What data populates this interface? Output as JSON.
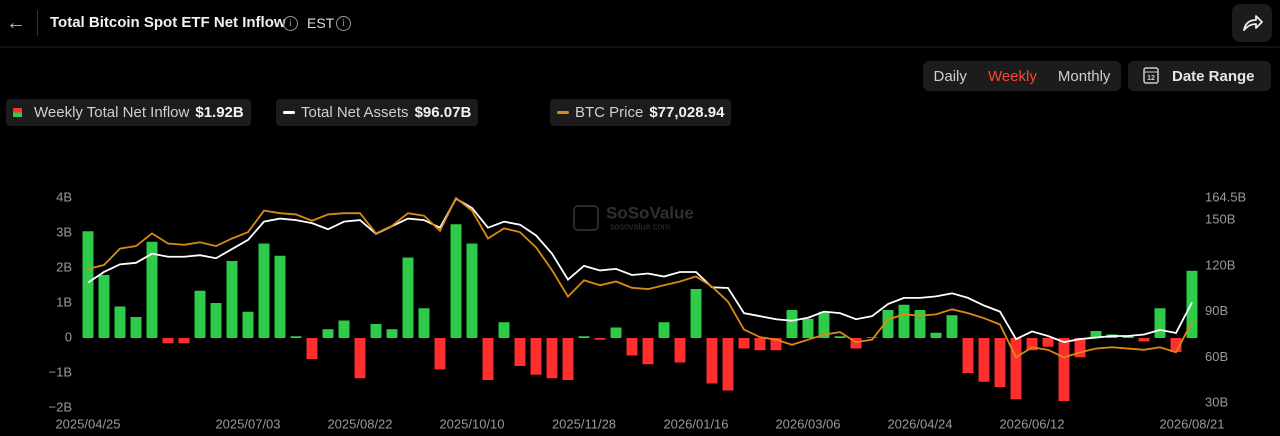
{
  "header": {
    "title": "Total Bitcoin Spot ETF Net Inflow",
    "timezone": "EST"
  },
  "controls": {
    "tabs": [
      "Daily",
      "Weekly",
      "Monthly"
    ],
    "active_tab": 1,
    "date_range": "Date Range"
  },
  "watermark": {
    "brand": "SoSoValue",
    "site": "sosovalue.com"
  },
  "chart_data": {
    "type": "bar",
    "categories": [
      "2025/04/25",
      null,
      null,
      null,
      null,
      null,
      null,
      null,
      null,
      null,
      "2025/07/03",
      null,
      null,
      null,
      null,
      null,
      null,
      "2025/08/22",
      null,
      null,
      null,
      null,
      null,
      null,
      "2025/10/10",
      null,
      null,
      null,
      null,
      null,
      null,
      "2025/11/28",
      null,
      null,
      null,
      null,
      null,
      null,
      "2026/01/16",
      null,
      null,
      null,
      null,
      null,
      null,
      "2026/03/06",
      null,
      null,
      null,
      null,
      null,
      null,
      "2026/04/24",
      null,
      null,
      null,
      null,
      null,
      null,
      "2026/06/12",
      null,
      null,
      null,
      null,
      null,
      null,
      null,
      null,
      null,
      "2026/08/21"
    ],
    "series": [
      {
        "name": "Weekly Total Net Inflow",
        "latest_label": "$1.92B",
        "type": "bar",
        "color": "#2fcc4a",
        "negative_color": "#ff2e2e",
        "values": [
          3.05,
          1.8,
          0.9,
          0.6,
          2.75,
          -0.15,
          -0.15,
          1.35,
          1.0,
          2.2,
          0.75,
          2.7,
          2.35,
          0.05,
          -0.6,
          0.25,
          0.5,
          -1.15,
          0.4,
          0.25,
          2.3,
          0.85,
          -0.9,
          3.25,
          2.7,
          -1.2,
          0.45,
          -0.8,
          -1.05,
          -1.15,
          -1.2,
          0.05,
          -0.05,
          0.3,
          -0.5,
          -0.75,
          0.45,
          -0.7,
          1.4,
          -1.3,
          -1.5,
          -0.3,
          -0.35,
          -0.35,
          0.8,
          0.55,
          0.75,
          0.05,
          -0.3,
          0.02,
          0.8,
          0.95,
          0.8,
          0.15,
          0.65,
          -1.0,
          -1.25,
          -1.4,
          -1.75,
          -0.35,
          -0.25,
          -1.8,
          -0.55,
          0.2,
          0.1,
          0.05,
          -0.1,
          0.85,
          -0.4,
          1.92
        ]
      },
      {
        "name": "Total Net Assets",
        "latest_label": "$96.07B",
        "type": "line",
        "axis": "y2",
        "color": "#ffffff",
        "values": [
          109,
          116,
          121,
          122,
          128,
          126,
          126,
          127,
          125,
          131,
          137,
          149,
          151,
          150,
          148,
          144,
          149,
          150,
          141,
          146,
          151,
          150,
          145,
          164,
          158,
          145,
          149,
          147,
          140,
          128,
          111,
          120,
          117,
          118,
          114,
          115,
          113,
          116,
          116,
          106,
          105.5,
          89,
          87,
          85,
          84,
          86,
          90,
          89,
          85,
          87,
          95,
          99,
          99,
          100,
          102,
          99,
          94,
          90,
          72,
          77,
          74,
          70,
          72,
          73,
          74,
          74,
          75,
          78,
          76,
          96.07
        ]
      },
      {
        "name": "BTC Price",
        "latest_label": "$77,028.94",
        "type": "line",
        "axis": "y3",
        "color": "#d98a12",
        "values": [
          98000,
          99500,
          106000,
          107000,
          112000,
          108000,
          107500,
          108500,
          107000,
          110000,
          112500,
          121000,
          120000,
          119500,
          117000,
          119500,
          120000,
          120000,
          112000,
          115000,
          120000,
          119000,
          113000,
          126000,
          121000,
          110000,
          114000,
          112500,
          106500,
          97500,
          87000,
          93500,
          91500,
          93000,
          90500,
          90000,
          91500,
          93000,
          95000,
          91000,
          85000,
          74000,
          71000,
          70000,
          68000,
          70000,
          72000,
          73000,
          69000,
          70000,
          78000,
          80000,
          79500,
          80000,
          82000,
          80500,
          78500,
          76000,
          63000,
          67000,
          66000,
          63000,
          65000,
          66500,
          67000,
          66500,
          66000,
          67000,
          65000,
          77028.94
        ]
      }
    ],
    "ylim": [
      -2,
      4
    ],
    "yticks": [
      {
        "value": 4,
        "label": "4B"
      },
      {
        "value": 3,
        "label": "3B"
      },
      {
        "value": 2,
        "label": "2B"
      },
      {
        "value": 1,
        "label": "1B"
      },
      0,
      {
        "value": -1,
        "label": "−1B"
      },
      {
        "value": -2,
        "label": "−2B"
      }
    ],
    "y2lim": [
      26.8,
      164.5
    ],
    "y2ticks": [
      {
        "value": 164.5,
        "label": "164.5B"
      },
      {
        "value": 150,
        "label": "150B"
      },
      {
        "value": 120,
        "label": "120B"
      },
      {
        "value": 90,
        "label": "90B"
      },
      {
        "value": 60,
        "label": "60B"
      },
      {
        "value": 30,
        "label": "30B"
      }
    ],
    "y3lim": [
      43000,
      126000
    ],
    "grid": false
  }
}
